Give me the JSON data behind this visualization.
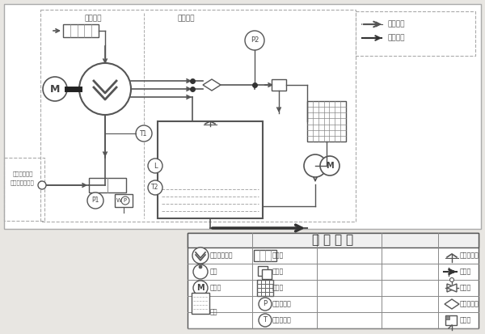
{
  "bg_color": "#e8e6e2",
  "diagram_bg": "#ffffff",
  "lc": "#555555",
  "title_legend": "图 例 说 明",
  "gas_system": "气路系统",
  "oil_system": "油路系统",
  "air_flow": "空气流向",
  "oil_flow": "机油流向",
  "left_text1": "被驱风机客户",
  "left_text2": "加压排气止回阀",
  "legend_rows": [
    [
      "无油螺杆主机",
      "消音器",
      "油箱通气孔"
    ],
    [
      "油泵",
      "过滤阀",
      "排油阀"
    ],
    [
      "电动机",
      "散热器",
      "截止阀"
    ],
    [
      "油箱",
      "压力传感器",
      "气油分离器"
    ],
    [
      "",
      "温度传感器",
      "安全阀"
    ]
  ]
}
